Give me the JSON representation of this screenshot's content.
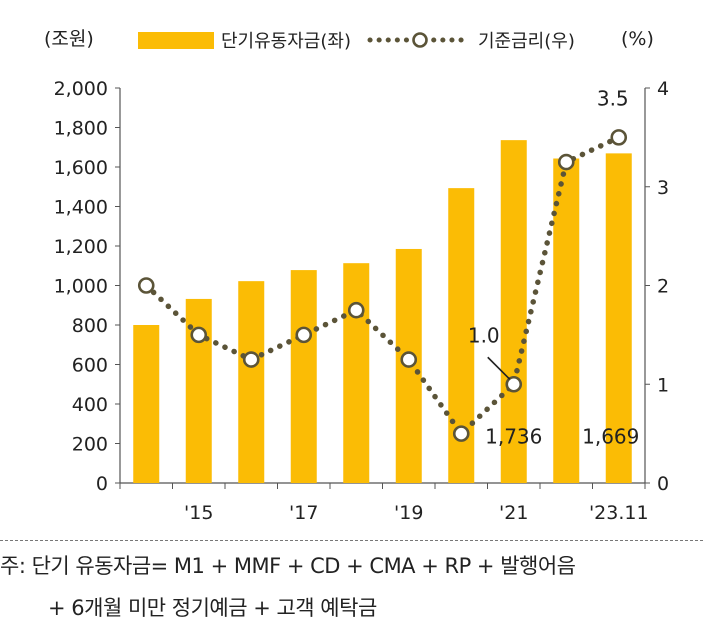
{
  "chart_data": {
    "type": "bar",
    "left_unit": "(조원)",
    "right_unit": "(%)",
    "legend": {
      "bar_label": "단기유동자금(좌)",
      "line_label": "기준금리(우)"
    },
    "categories": [
      "2014",
      "2015",
      "2016",
      "2017",
      "2018",
      "2019",
      "2020",
      "2021",
      "2022",
      "2023.11"
    ],
    "x_tick_labels": [
      "'15",
      "'17",
      "'19",
      "'21",
      "'23.11"
    ],
    "x_tick_categories": [
      "2015",
      "2017",
      "2019",
      "2021",
      "2023.11"
    ],
    "left_axis": {
      "min": 0,
      "max": 2000,
      "step": 200,
      "tick_labels": [
        "0",
        "200",
        "400",
        "600",
        "800",
        "1,000",
        "1,200",
        "1,400",
        "1,600",
        "1,800",
        "2,000"
      ]
    },
    "right_axis": {
      "min": 0,
      "max": 4,
      "step": 1,
      "tick_labels": [
        "0",
        "1",
        "2",
        "3",
        "4"
      ]
    },
    "series": [
      {
        "name": "단기유동자금(좌)",
        "kind": "bar",
        "axis": "left",
        "color": "#FBBC05",
        "values": [
          800,
          932,
          1022,
          1078,
          1113,
          1185,
          1493,
          1736,
          1643,
          1669
        ]
      },
      {
        "name": "기준금리(우)",
        "kind": "line",
        "axis": "right",
        "color": "#5b5438",
        "marker": "open-circle",
        "values": [
          2.0,
          1.5,
          1.25,
          1.5,
          1.75,
          1.25,
          0.5,
          1.0,
          3.25,
          3.5
        ]
      }
    ],
    "annotations": [
      {
        "text": "3.5",
        "series": "기준금리(우)",
        "category": "2023.11"
      },
      {
        "text": "1.0",
        "series": "기준금리(우)",
        "category": "2021",
        "leader_line": true
      },
      {
        "text": "1,736",
        "series": "단기유동자금(좌)",
        "category": "2021"
      },
      {
        "text": "1,669",
        "series": "단기유동자금(좌)",
        "category": "2023.11"
      }
    ],
    "grid": false
  },
  "footnote": {
    "line1": "주:  단기 유동자금= M1 + MMF + CD + CMA + RP + 발행어음",
    "line2": "+ 6개월 미만 정기예금 + 고객 예탁금"
  }
}
